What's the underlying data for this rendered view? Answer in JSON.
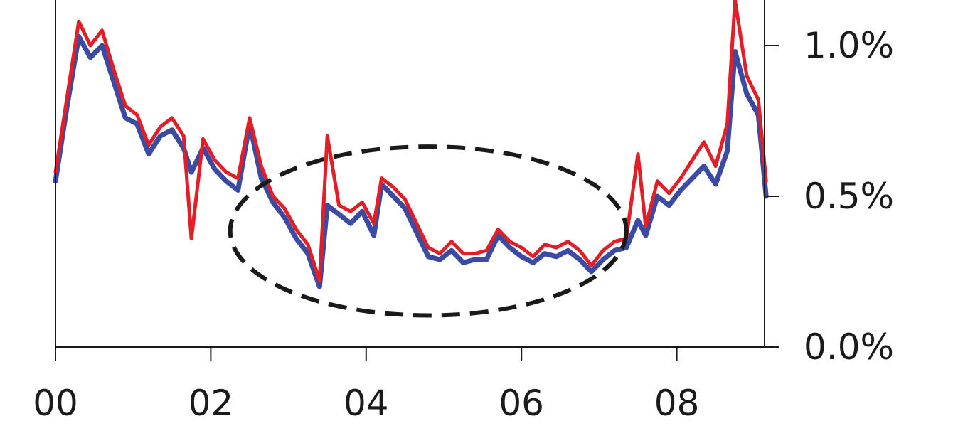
{
  "chart_data": {
    "type": "line",
    "title": "",
    "xlabel": "",
    "ylabel": "",
    "x_ticks": [
      "00",
      "02",
      "04",
      "06",
      "08"
    ],
    "y_ticks": [
      "0.0%",
      "0.5%",
      "1.0%"
    ],
    "xlim": [
      2000,
      2009.15
    ],
    "ylim": [
      0.0,
      1.15
    ],
    "y_axis_side": "right",
    "grid": false,
    "legend": "none",
    "annotation": {
      "type": "dashed-ellipse",
      "center": [
        2004.8,
        0.385
      ],
      "x_radius": 2.55,
      "y_radius": 0.28
    },
    "series": [
      {
        "color": "#3b4aa3",
        "x": [
          2000.0,
          2000.15,
          2000.3,
          2000.45,
          2000.6,
          2000.75,
          2000.9,
          2001.05,
          2001.2,
          2001.35,
          2001.5,
          2001.65,
          2001.75,
          2001.9,
          2002.05,
          2002.2,
          2002.35,
          2002.5,
          2002.65,
          2002.8,
          2002.95,
          2003.1,
          2003.25,
          2003.4,
          2003.5,
          2003.65,
          2003.8,
          2003.95,
          2004.1,
          2004.2,
          2004.35,
          2004.5,
          2004.65,
          2004.8,
          2004.95,
          2005.1,
          2005.25,
          2005.4,
          2005.55,
          2005.7,
          2005.85,
          2006.0,
          2006.15,
          2006.3,
          2006.45,
          2006.6,
          2006.75,
          2006.9,
          2007.05,
          2007.2,
          2007.35,
          2007.5,
          2007.6,
          2007.75,
          2007.9,
          2008.05,
          2008.2,
          2008.35,
          2008.5,
          2008.65,
          2008.75,
          2008.9,
          2009.05,
          2009.15
        ],
        "y": [
          0.55,
          0.8,
          1.03,
          0.96,
          1.0,
          0.88,
          0.76,
          0.74,
          0.64,
          0.7,
          0.72,
          0.66,
          0.58,
          0.66,
          0.59,
          0.55,
          0.52,
          0.74,
          0.56,
          0.48,
          0.43,
          0.36,
          0.31,
          0.2,
          0.47,
          0.44,
          0.41,
          0.45,
          0.37,
          0.54,
          0.5,
          0.46,
          0.38,
          0.3,
          0.29,
          0.32,
          0.28,
          0.29,
          0.29,
          0.37,
          0.33,
          0.3,
          0.28,
          0.31,
          0.3,
          0.32,
          0.29,
          0.25,
          0.29,
          0.32,
          0.33,
          0.42,
          0.37,
          0.5,
          0.47,
          0.52,
          0.56,
          0.6,
          0.54,
          0.65,
          0.98,
          0.84,
          0.77,
          0.5
        ]
      },
      {
        "color": "#e31e26",
        "x": [
          2000.0,
          2000.15,
          2000.3,
          2000.45,
          2000.6,
          2000.75,
          2000.9,
          2001.05,
          2001.2,
          2001.35,
          2001.5,
          2001.65,
          2001.75,
          2001.9,
          2002.05,
          2002.2,
          2002.35,
          2002.5,
          2002.65,
          2002.8,
          2002.95,
          2003.1,
          2003.25,
          2003.4,
          2003.5,
          2003.65,
          2003.8,
          2003.95,
          2004.1,
          2004.2,
          2004.35,
          2004.5,
          2004.65,
          2004.8,
          2004.95,
          2005.1,
          2005.25,
          2005.4,
          2005.55,
          2005.7,
          2005.85,
          2006.0,
          2006.15,
          2006.3,
          2006.45,
          2006.6,
          2006.75,
          2006.9,
          2007.05,
          2007.2,
          2007.35,
          2007.5,
          2007.6,
          2007.75,
          2007.9,
          2008.05,
          2008.2,
          2008.35,
          2008.5,
          2008.65,
          2008.75,
          2008.9,
          2009.05,
          2009.15
        ],
        "y": [
          0.58,
          0.83,
          1.08,
          1.0,
          1.05,
          0.92,
          0.8,
          0.77,
          0.67,
          0.73,
          0.76,
          0.7,
          0.36,
          0.69,
          0.62,
          0.58,
          0.56,
          0.76,
          0.6,
          0.5,
          0.46,
          0.39,
          0.34,
          0.22,
          0.7,
          0.47,
          0.45,
          0.48,
          0.41,
          0.56,
          0.53,
          0.49,
          0.41,
          0.33,
          0.31,
          0.35,
          0.31,
          0.31,
          0.32,
          0.39,
          0.35,
          0.33,
          0.3,
          0.34,
          0.33,
          0.35,
          0.32,
          0.27,
          0.32,
          0.35,
          0.36,
          0.64,
          0.4,
          0.55,
          0.51,
          0.56,
          0.62,
          0.68,
          0.6,
          0.74,
          1.15,
          0.9,
          0.82,
          0.55
        ]
      }
    ]
  }
}
